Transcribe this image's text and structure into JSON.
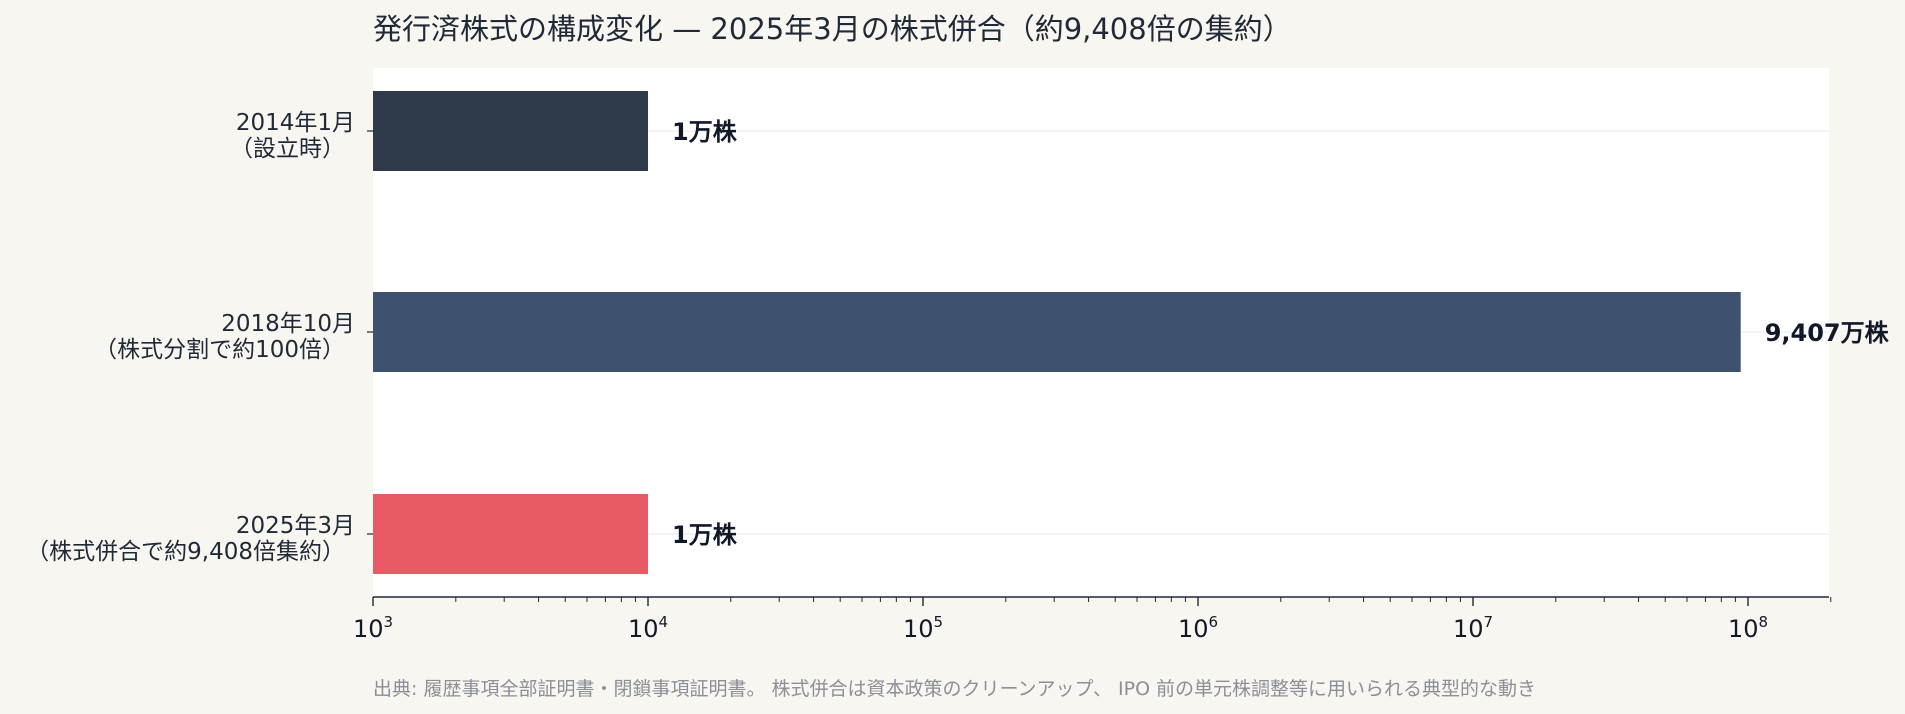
{
  "title": "発行済株式の構成変化 — 2025年3月の株式併合（約9,408倍の集約）",
  "source_note": "出典: 履歴事項全部証明書・閉鎖事項証明書。 株式併合は資本政策のクリーンアップ、 IPO 前の単元株調整等に用いられる典型的な動き",
  "chart_data": {
    "type": "bar",
    "orientation": "horizontal",
    "x_scale": "log",
    "xlim": [
      1000,
      200000000
    ],
    "grid": false,
    "categories": [
      {
        "line1": "2014年1月",
        "line2": "（設立時）"
      },
      {
        "line1": "2018年10月",
        "line2": "（株式分割で約100倍）"
      },
      {
        "line1": "2025年3月",
        "line2": "（株式併合で約9,408倍集約）"
      }
    ],
    "values": [
      10000,
      94070000,
      10000
    ],
    "value_labels": [
      "1万株",
      "9,407万株",
      "1万株"
    ],
    "colors": [
      "#2f3a4a",
      "#3e516f",
      "#e85a64"
    ],
    "x_ticks": [
      {
        "base": "10",
        "exp": "3",
        "value": 1000
      },
      {
        "base": "10",
        "exp": "4",
        "value": 10000
      },
      {
        "base": "10",
        "exp": "5",
        "value": 100000
      },
      {
        "base": "10",
        "exp": "6",
        "value": 1000000
      },
      {
        "base": "10",
        "exp": "7",
        "value": 10000000
      },
      {
        "base": "10",
        "exp": "8",
        "value": 100000000
      }
    ]
  }
}
